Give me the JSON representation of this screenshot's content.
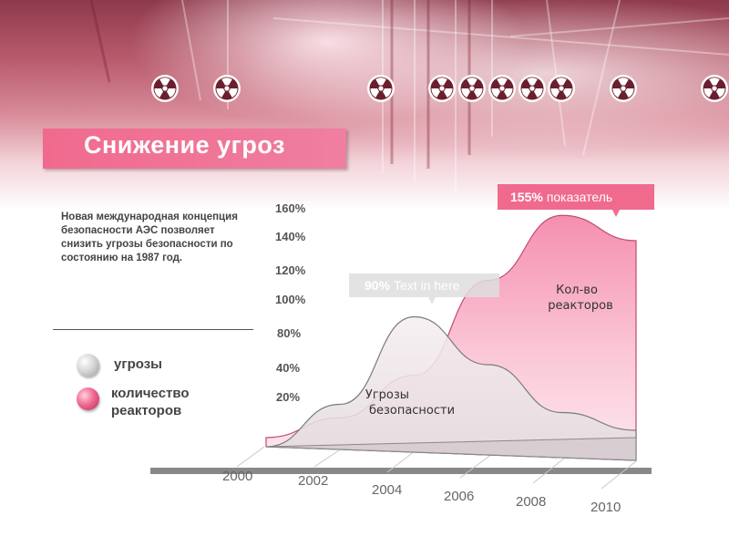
{
  "title": "Снижение угроз",
  "description": "Новая международная концепция безопасности АЭС позволяет снизить угрозы безопасности по состоянию на 1987 год.",
  "legend": {
    "items": [
      {
        "label": "угрозы",
        "color": "#cfcfcf"
      },
      {
        "label": "количество реакторов",
        "color": "#f06a92"
      }
    ]
  },
  "icons": [
    "radiation-icon"
  ],
  "colors": {
    "accent": "#f06a8e",
    "threats": "#e8d6dc",
    "reactors": "#f7a8c0"
  },
  "chart_data": {
    "type": "area",
    "y_tick_labels": [
      "160%",
      "140%",
      "120%",
      "100%",
      "80%",
      "40%",
      "20%"
    ],
    "x": [
      "2000",
      "2002",
      "2004",
      "2006",
      "2008",
      "2010"
    ],
    "series": [
      {
        "label": "Угрозы безопасности",
        "values": [
          0,
          30,
          90,
          60,
          30,
          20
        ]
      },
      {
        "label": "Кол-во реакторов",
        "values": [
          0,
          15,
          45,
          110,
          155,
          140
        ]
      }
    ],
    "callouts": [
      {
        "value": "90%",
        "text": "Text in here"
      },
      {
        "value": "155%",
        "text": "показатель"
      }
    ]
  }
}
